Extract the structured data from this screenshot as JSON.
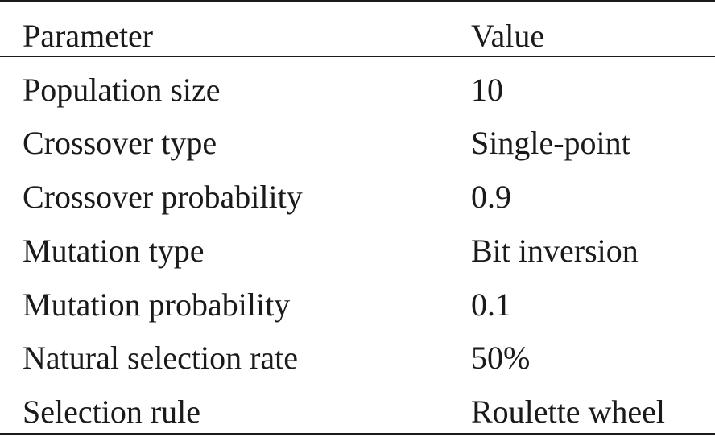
{
  "table": {
    "headers": [
      "Parameter",
      "Value"
    ],
    "rows": [
      {
        "parameter": "Population size",
        "value": "10"
      },
      {
        "parameter": "Crossover type",
        "value": "Single-point"
      },
      {
        "parameter": "Crossover probability",
        "value": "0.9"
      },
      {
        "parameter": "Mutation type",
        "value": "Bit inversion"
      },
      {
        "parameter": "Mutation probability",
        "value": "0.1"
      },
      {
        "parameter": "Natural selection rate",
        "value": "50%"
      },
      {
        "parameter": "Selection rule",
        "value": "Roulette wheel"
      }
    ]
  }
}
